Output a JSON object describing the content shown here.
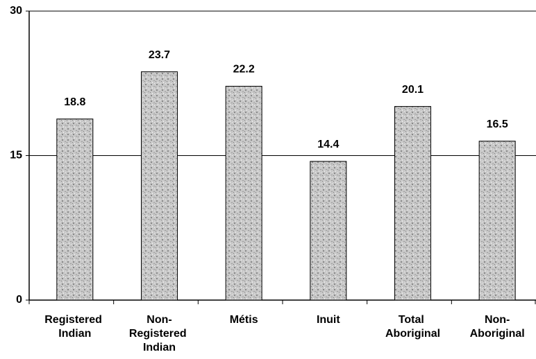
{
  "chart_data": {
    "type": "bar",
    "categories": [
      "Registered Indian",
      "Non-Registered Indian",
      "Métis",
      "Inuit",
      "Total Aboriginal",
      "Non-Aboriginal"
    ],
    "values": [
      18.8,
      23.7,
      22.2,
      14.4,
      20.1,
      16.5
    ],
    "color": "#b8b8b8",
    "ylim": [
      0,
      30
    ],
    "yticks": [
      0,
      15,
      30
    ],
    "grid": true
  }
}
